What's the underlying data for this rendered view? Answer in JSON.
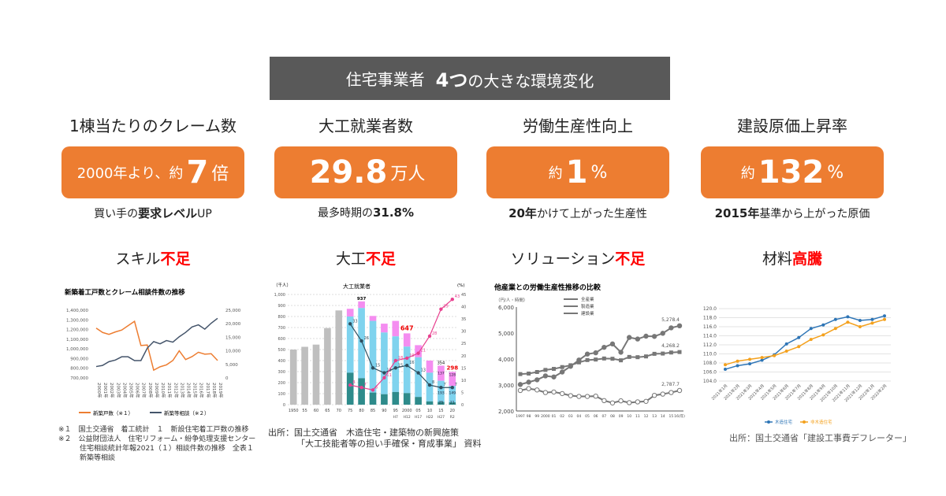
{
  "banner": {
    "prefix": "住宅事業者",
    "bold": "4つ",
    "suffix": "の大きな環境変化"
  },
  "columns": [
    {
      "title": "1棟当たりのクレーム数",
      "pre": "2000年より、約",
      "big": "7",
      "post": "倍",
      "sub_pre": "買い手の",
      "sub_bold": "要求レベル",
      "sub_post": "UP",
      "issue": "スキル",
      "issue_red": "不足"
    },
    {
      "title": "大工就業者数",
      "pre": "",
      "big": "29.8",
      "post": "万人",
      "sub_pre": "最多時期の",
      "sub_bold": "31.8%",
      "sub_post": "",
      "issue": "大工",
      "issue_red": "不足"
    },
    {
      "title": "労働生産性向上",
      "pre": "約",
      "big": "1",
      "post": "%",
      "sub_pre": "",
      "sub_bold": "20年",
      "sub_post": "かけて上がった生産性",
      "issue": "ソリューション",
      "issue_red": "不足"
    },
    {
      "title": "建設原価上昇率",
      "pre": "約",
      "big": "132",
      "post": "%",
      "sub_pre": "",
      "sub_bold": "2015年",
      "sub_post": "基準から上がった原価",
      "issue": "材料",
      "issue_red": "高騰"
    }
  ],
  "notes1": [
    "※１　国土交通省　着工統計　１　新設住宅着工戸数の推移",
    "※２　公益財団法人　住宅リフォーム・紛争処理支援センター",
    "　　　住宅相談統計年報2021（１）相談件数の推移　全表１",
    "　　　新築等相談"
  ],
  "source2": [
    "出所：国土交通省　木造住宅・建築物の新興施策",
    "「大工技能者等の担い手確保・育成事業」 資料"
  ],
  "source4": "出所：国土交通省「建設工事費デフレーター」",
  "chart_data": [
    {
      "type": "line",
      "title": "新築着工戸数とクレーム相談件数の推移",
      "categories": [
        "2000年",
        "2001年",
        "2002年",
        "2003年",
        "2004年",
        "2005年",
        "2006年",
        "2007年",
        "2008年",
        "2009年",
        "2010年",
        "2011年",
        "2012年",
        "2013年",
        "2014年",
        "2015年",
        "2016年",
        "2017年",
        "2018年",
        "2019年"
      ],
      "ylim": [
        700000,
        1400000
      ],
      "yticks": [
        "700,000",
        "800,000",
        "900,000",
        "1,000,000",
        "1,100,000",
        "1,200,000",
        "1,300,000",
        "1,400,000"
      ],
      "y2lim": [
        0,
        25000
      ],
      "y2ticks": [
        "0",
        "5,000",
        "10,000",
        "15,000",
        "20,000",
        "25,000"
      ],
      "series": [
        {
          "name": "新築戸数（※１）",
          "color": "#ed7d31",
          "axis": "left",
          "values": [
            1215000,
            1170000,
            1150000,
            1175000,
            1195000,
            1240000,
            1285000,
            1035000,
            1040000,
            780000,
            815000,
            835000,
            880000,
            980000,
            890000,
            920000,
            965000,
            945000,
            950000,
            880000
          ]
        },
        {
          "name": "新築等相談（※２）",
          "color": "#44546a",
          "axis": "right",
          "values": [
            4200,
            4600,
            6000,
            6600,
            7800,
            7800,
            6400,
            6400,
            11000,
            13400,
            12600,
            13800,
            13200,
            15200,
            16800,
            18800,
            19600,
            18000,
            20200,
            22000
          ]
        }
      ]
    },
    {
      "type": "bar",
      "title": "大工就業者",
      "ylabel": "（千人）",
      "y2label": "(%)",
      "categories": [
        "1950",
        "55",
        "60",
        "65",
        "70",
        "75",
        "80",
        "85",
        "90",
        "95",
        "2000",
        "05",
        "10",
        "15",
        "20"
      ],
      "subcategories": [
        "",
        "",
        "",
        "",
        "",
        "",
        "",
        "",
        "",
        "H7",
        "H12",
        "H17",
        "H22",
        "H27",
        "R2"
      ],
      "ylim": [
        0,
        1000
      ],
      "yticks": [
        "0",
        "100",
        "200",
        "300",
        "400",
        "500",
        "600",
        "700",
        "800",
        "900",
        "1,000"
      ],
      "y2lim": [
        0,
        45
      ],
      "y2ticks": [
        "0",
        "5",
        "10",
        "15",
        "20",
        "25",
        "30",
        "35",
        "40",
        "45"
      ],
      "totals": [
        500,
        525,
        545,
        695,
        855,
        870,
        937,
        805,
        735,
        760,
        647,
        540,
        400,
        354,
        298
      ],
      "under30": [
        null,
        null,
        null,
        null,
        null,
        290,
        240,
        110,
        95,
        115,
        105,
        70,
        30,
        25,
        21
      ],
      "over60": [
        null,
        null,
        null,
        null,
        null,
        70,
        60,
        45,
        80,
        140,
        120,
        110,
        110,
        137,
        128
      ],
      "labels": {
        "80": "937",
        "2000": "647",
        "15": "354",
        "20": "298",
        "15_over60": "137",
        "20_over60": "128",
        "15_mid": "193",
        "20_mid": "149",
        "15_u30": "25",
        "20_u30": "21"
      },
      "line_under30_pct": [
        null,
        null,
        null,
        null,
        null,
        33,
        26,
        15,
        13,
        15,
        16,
        13,
        8,
        7,
        7
      ],
      "line_over60_pct": [
        null,
        null,
        null,
        null,
        null,
        8,
        7,
        6,
        11,
        18,
        19,
        21,
        28,
        39,
        43
      ]
    },
    {
      "type": "line",
      "title": "他産業との労働生産性推移の比較",
      "ylabel": "（円/人・時間）",
      "categories": [
        "1997",
        "98",
        "99",
        "2000",
        "01",
        "02",
        "03",
        "04",
        "05",
        "06",
        "07",
        "08",
        "09",
        "10",
        "11",
        "12",
        "13",
        "14",
        "15",
        "16(年)"
      ],
      "ylim": [
        2000,
        6000
      ],
      "yticks": [
        "2,000",
        "3,000",
        "4,000",
        "5,000",
        "6,000"
      ],
      "series": [
        {
          "name": "全産業",
          "marker": "square",
          "values": [
            3420,
            3440,
            3500,
            3580,
            3620,
            3690,
            3760,
            3870,
            3960,
            3980,
            4020,
            4010,
            3950,
            4080,
            4070,
            4100,
            4200,
            4210,
            4250,
            4268.2
          ],
          "end_label": "4,268.2"
        },
        {
          "name": "製造業",
          "marker": "circle",
          "values": [
            3020,
            3110,
            3200,
            3350,
            3310,
            3500,
            3720,
            3960,
            4190,
            4240,
            4450,
            4580,
            4260,
            4830,
            4770,
            4880,
            4870,
            4990,
            5200,
            5278.4
          ],
          "end_label": "5,278.4"
        },
        {
          "name": "建設業",
          "marker": "open-circle",
          "values": [
            2790,
            2860,
            2810,
            2710,
            2730,
            2670,
            2590,
            2560,
            2560,
            2570,
            2400,
            2310,
            2390,
            2320,
            2350,
            2370,
            2600,
            2650,
            2710,
            2787.7
          ],
          "end_label": "2,787.7"
        }
      ]
    },
    {
      "type": "line",
      "title": "",
      "categories": [
        "2021年1月",
        "2021年2月",
        "2021年3月",
        "2021年4月",
        "2021年5月",
        "2021年6月",
        "2021年7月",
        "2021年8月",
        "2021年9月",
        "2021年10月",
        "2021年11月",
        "2021年12月",
        "2022年1月",
        "2022年2月"
      ],
      "ylim": [
        104,
        120
      ],
      "yticks": [
        "104.0",
        "106.0",
        "108.0",
        "110.0",
        "112.0",
        "114.0",
        "116.0",
        "118.0",
        "120.0"
      ],
      "series": [
        {
          "name": "木造住宅",
          "color": "#2e75b6",
          "values": [
            106.6,
            107.4,
            107.8,
            108.6,
            109.8,
            112.2,
            113.6,
            115.6,
            116.4,
            117.6,
            118.2,
            117.4,
            117.6,
            118.4
          ]
        },
        {
          "name": "非木造住宅",
          "color": "#f4a11d",
          "values": [
            107.6,
            108.4,
            108.8,
            109.2,
            109.6,
            110.6,
            111.6,
            113.2,
            114.2,
            115.6,
            117.0,
            116.0,
            116.8,
            117.6
          ]
        }
      ]
    }
  ]
}
